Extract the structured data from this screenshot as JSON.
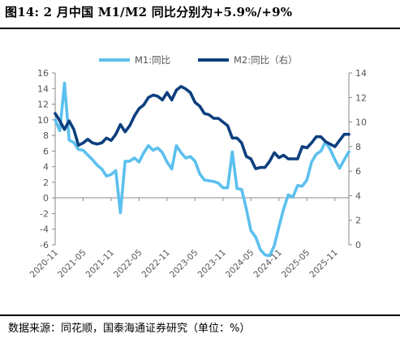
{
  "title": "图14:  2 月中国 M1/M2 同比分别为+5.9%/+9%",
  "source": "数据来源：同花顺，国泰海通证券研究（单位：%）",
  "colors": {
    "m1": "#5bc0ee",
    "m2": "#0d3f7e",
    "axis": "#888888"
  },
  "chart_data": {
    "type": "line",
    "x_tick_labels": [
      "2020-11",
      "2021-05",
      "2021-11",
      "2022-05",
      "2022-11",
      "2023-05",
      "2023-11",
      "2024-05",
      "2024-11",
      "2025-05",
      "2025-11"
    ],
    "x": [
      "2020-11",
      "2020-12",
      "2021-01",
      "2021-02",
      "2021-03",
      "2021-04",
      "2021-05",
      "2021-06",
      "2021-07",
      "2021-08",
      "2021-09",
      "2021-10",
      "2021-11",
      "2021-12",
      "2022-01",
      "2022-02",
      "2022-03",
      "2022-04",
      "2022-05",
      "2022-06",
      "2022-07",
      "2022-08",
      "2022-09",
      "2022-10",
      "2022-11",
      "2022-12",
      "2023-01",
      "2023-02",
      "2023-03",
      "2023-04",
      "2023-05",
      "2023-06",
      "2023-07",
      "2023-08",
      "2023-09",
      "2023-10",
      "2023-11",
      "2023-12",
      "2024-01",
      "2024-02",
      "2024-03",
      "2024-04",
      "2024-05",
      "2024-06",
      "2024-07",
      "2024-08",
      "2024-09",
      "2024-10",
      "2024-11",
      "2024-12",
      "2025-01",
      "2025-02",
      "2025-03",
      "2025-04",
      "2025-05",
      "2025-06",
      "2025-07",
      "2025-08",
      "2025-09",
      "2025-10",
      "2025-11",
      "2025-12",
      "2026-01",
      "2026-02"
    ],
    "left_axis": {
      "ylim": [
        -6,
        16
      ],
      "ticks": [
        -6,
        -4,
        -2,
        0,
        2,
        4,
        6,
        8,
        10,
        12,
        14,
        16
      ]
    },
    "right_axis": {
      "ylim": [
        0,
        14
      ],
      "ticks": [
        0,
        2,
        4,
        6,
        8,
        10,
        12,
        14
      ]
    },
    "legend_position": "top-center",
    "series": [
      {
        "name": "M1:同比",
        "axis": "left",
        "values": [
          10,
          8.6,
          14.7,
          7.4,
          7.1,
          6.2,
          6.1,
          5.5,
          4.9,
          4.2,
          3.7,
          2.8,
          3.0,
          3.5,
          -1.9,
          4.7,
          4.7,
          5.1,
          4.6,
          5.8,
          6.7,
          6.1,
          6.4,
          5.8,
          4.6,
          3.7,
          6.7,
          5.8,
          5.1,
          5.3,
          4.7,
          3.1,
          2.3,
          2.2,
          2.1,
          1.9,
          1.3,
          1.3,
          5.9,
          1.2,
          1.1,
          -1.4,
          -4.2,
          -5.0,
          -6.6,
          -7.3,
          -7.4,
          -6.1,
          -3.7,
          -1.4,
          0.4,
          0.1,
          1.6,
          1.5,
          2.3,
          4.6,
          5.6,
          6.0,
          7.2,
          6.2,
          4.9,
          3.8,
          4.9,
          5.9
        ]
      },
      {
        "name": "M2:同比（右）",
        "axis": "right",
        "values": [
          10.7,
          10.1,
          9.4,
          10.1,
          9.4,
          8.1,
          8.3,
          8.6,
          8.3,
          8.2,
          8.3,
          8.7,
          8.5,
          9.0,
          9.8,
          9.2,
          9.7,
          10.5,
          11.1,
          11.4,
          12.0,
          12.2,
          12.1,
          11.8,
          12.4,
          11.8,
          12.6,
          12.9,
          12.7,
          12.4,
          11.6,
          11.3,
          10.7,
          10.6,
          10.3,
          10.3,
          10.0,
          9.7,
          8.7,
          8.7,
          8.3,
          7.2,
          7.0,
          6.2,
          6.3,
          6.3,
          6.8,
          7.5,
          7.1,
          7.3,
          7.0,
          7.0,
          7.0,
          8.0,
          7.9,
          8.3,
          8.8,
          8.8,
          8.4,
          8.2,
          8.0,
          8.5,
          9.0,
          9.0
        ]
      }
    ]
  }
}
